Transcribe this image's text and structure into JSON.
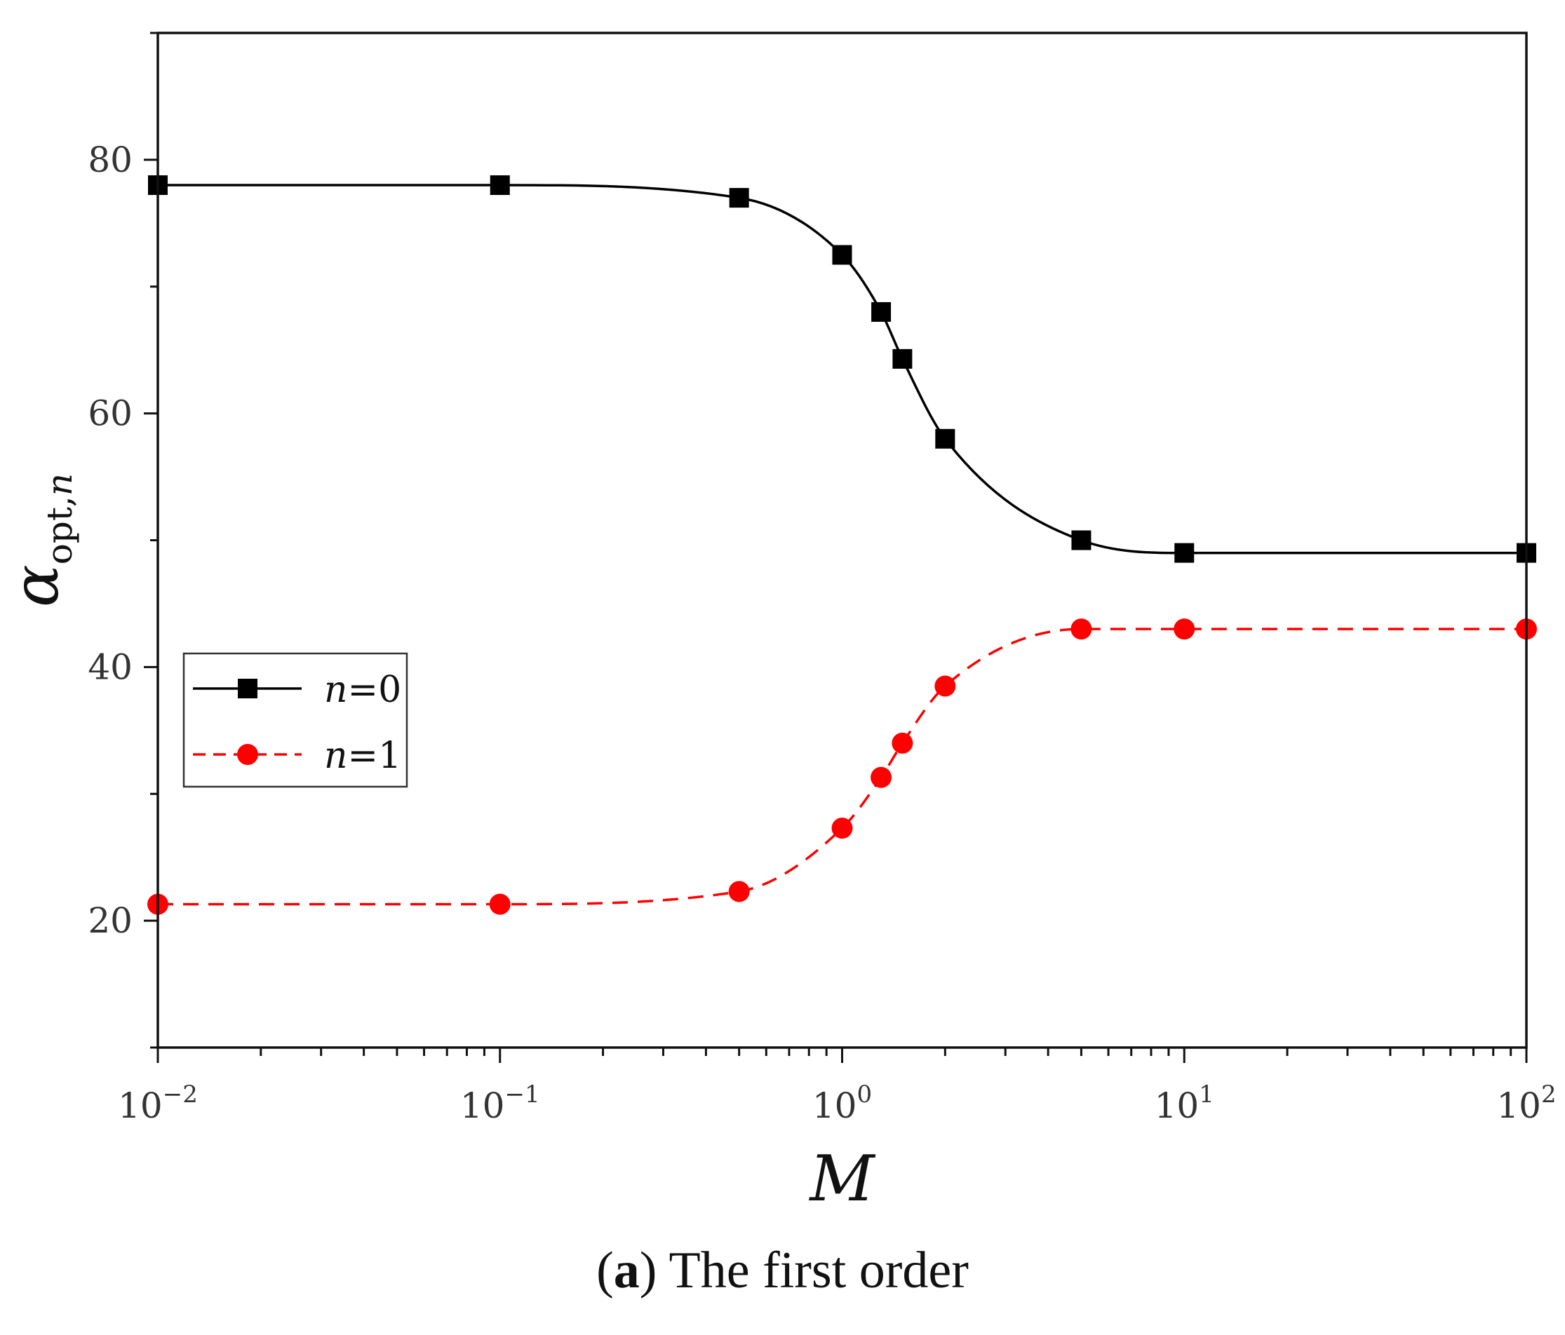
{
  "chart_data": {
    "type": "line",
    "xlabel": "M",
    "xscale": "log",
    "xlim": [
      0.01,
      100
    ],
    "x_tick_labels": [
      {
        "value": 0.01,
        "base": "10",
        "exp": "−2"
      },
      {
        "value": 0.1,
        "base": "10",
        "exp": "−1"
      },
      {
        "value": 1,
        "base": "10",
        "exp": "0"
      },
      {
        "value": 10,
        "base": "10",
        "exp": "1"
      },
      {
        "value": 100,
        "base": "10",
        "exp": "2"
      }
    ],
    "ylabel": {
      "symbol": "α",
      "subscript": "opt,",
      "subscript_italic": "n"
    },
    "ylim": [
      10,
      90
    ],
    "y_ticks": [
      20,
      40,
      60,
      80
    ],
    "y_tick_labels": [
      "20",
      "40",
      "60",
      "80"
    ],
    "grid": false,
    "legend_placement": "center-left",
    "series": [
      {
        "name": "n=0",
        "label_italic": "n",
        "label_rest": "=0",
        "color": "#000000",
        "line_style": "solid",
        "marker": "square",
        "x": [
          0.01,
          0.1,
          0.5,
          1,
          1.3,
          1.5,
          2,
          5,
          10,
          100
        ],
        "y": [
          78,
          78,
          77,
          72.5,
          68,
          64.3,
          58,
          50,
          49,
          49
        ]
      },
      {
        "name": "n=1",
        "label_italic": "n",
        "label_rest": "=1",
        "color": "#ff0000",
        "line_style": "dashed",
        "marker": "circle",
        "x": [
          0.01,
          0.1,
          0.5,
          1,
          1.3,
          1.5,
          2,
          5,
          10,
          100
        ],
        "y": [
          21.3,
          21.3,
          22.3,
          27.3,
          31.3,
          34,
          38.5,
          43,
          43,
          43
        ]
      }
    ]
  },
  "caption": {
    "letter": "a",
    "open_paren": "(",
    "close_paren": ")",
    "text": " The first order"
  }
}
